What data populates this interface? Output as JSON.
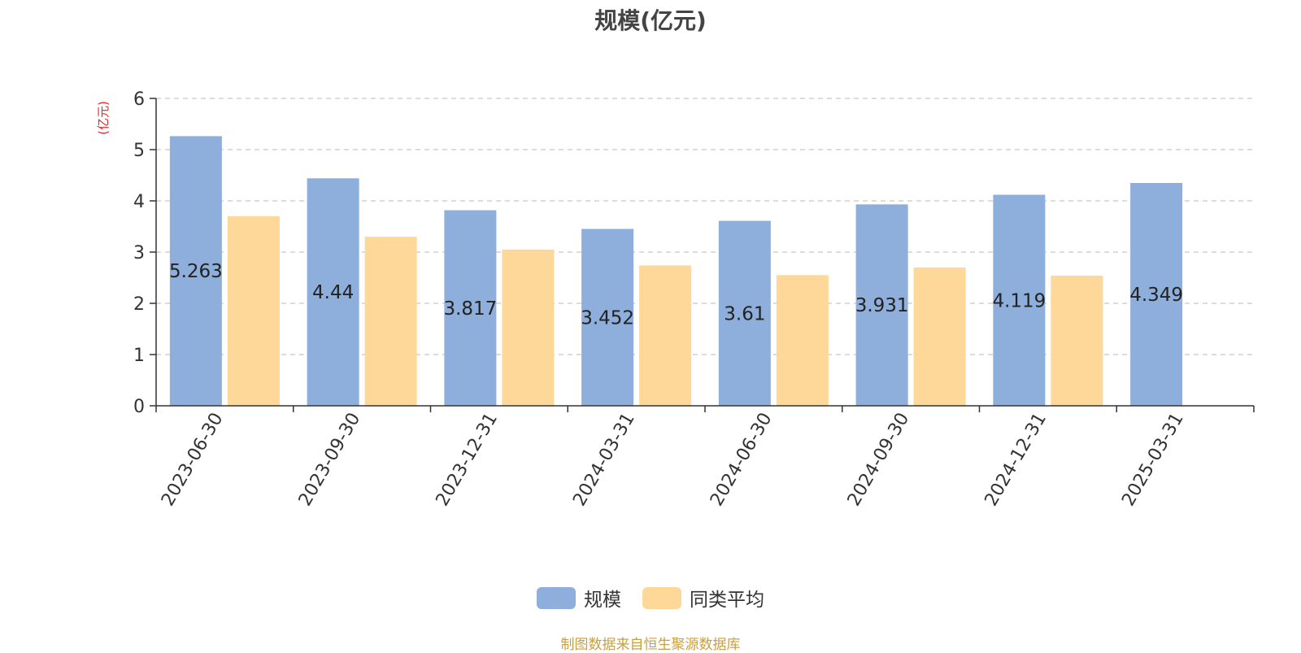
{
  "chart_data": {
    "type": "bar",
    "title": "规模(亿元)",
    "ylabel": "(亿元)",
    "xlabel": "",
    "ylim": [
      0,
      6
    ],
    "yticks": [
      0,
      1,
      2,
      3,
      4,
      5,
      6
    ],
    "grid": "horizontal-dashed",
    "legend_position": "bottom",
    "categories": [
      "2023-06-30",
      "2023-09-30",
      "2023-12-31",
      "2024-03-31",
      "2024-06-30",
      "2024-09-30",
      "2024-12-31",
      "2025-03-31"
    ],
    "series": [
      {
        "name": "规模",
        "color": "#8eaedb",
        "values": [
          5.263,
          4.44,
          3.817,
          3.452,
          3.61,
          3.931,
          4.119,
          4.349
        ],
        "labels": [
          "5.263",
          "4.44",
          "3.817",
          "3.452",
          "3.61",
          "3.931",
          "4.119",
          "4.349"
        ]
      },
      {
        "name": "同类平均",
        "color": "#fed899",
        "values": [
          3.7,
          3.3,
          3.05,
          2.74,
          2.55,
          2.7,
          2.54,
          null
        ]
      }
    ]
  },
  "footer": {
    "source": "制图数据来自恒生聚源数据库"
  }
}
